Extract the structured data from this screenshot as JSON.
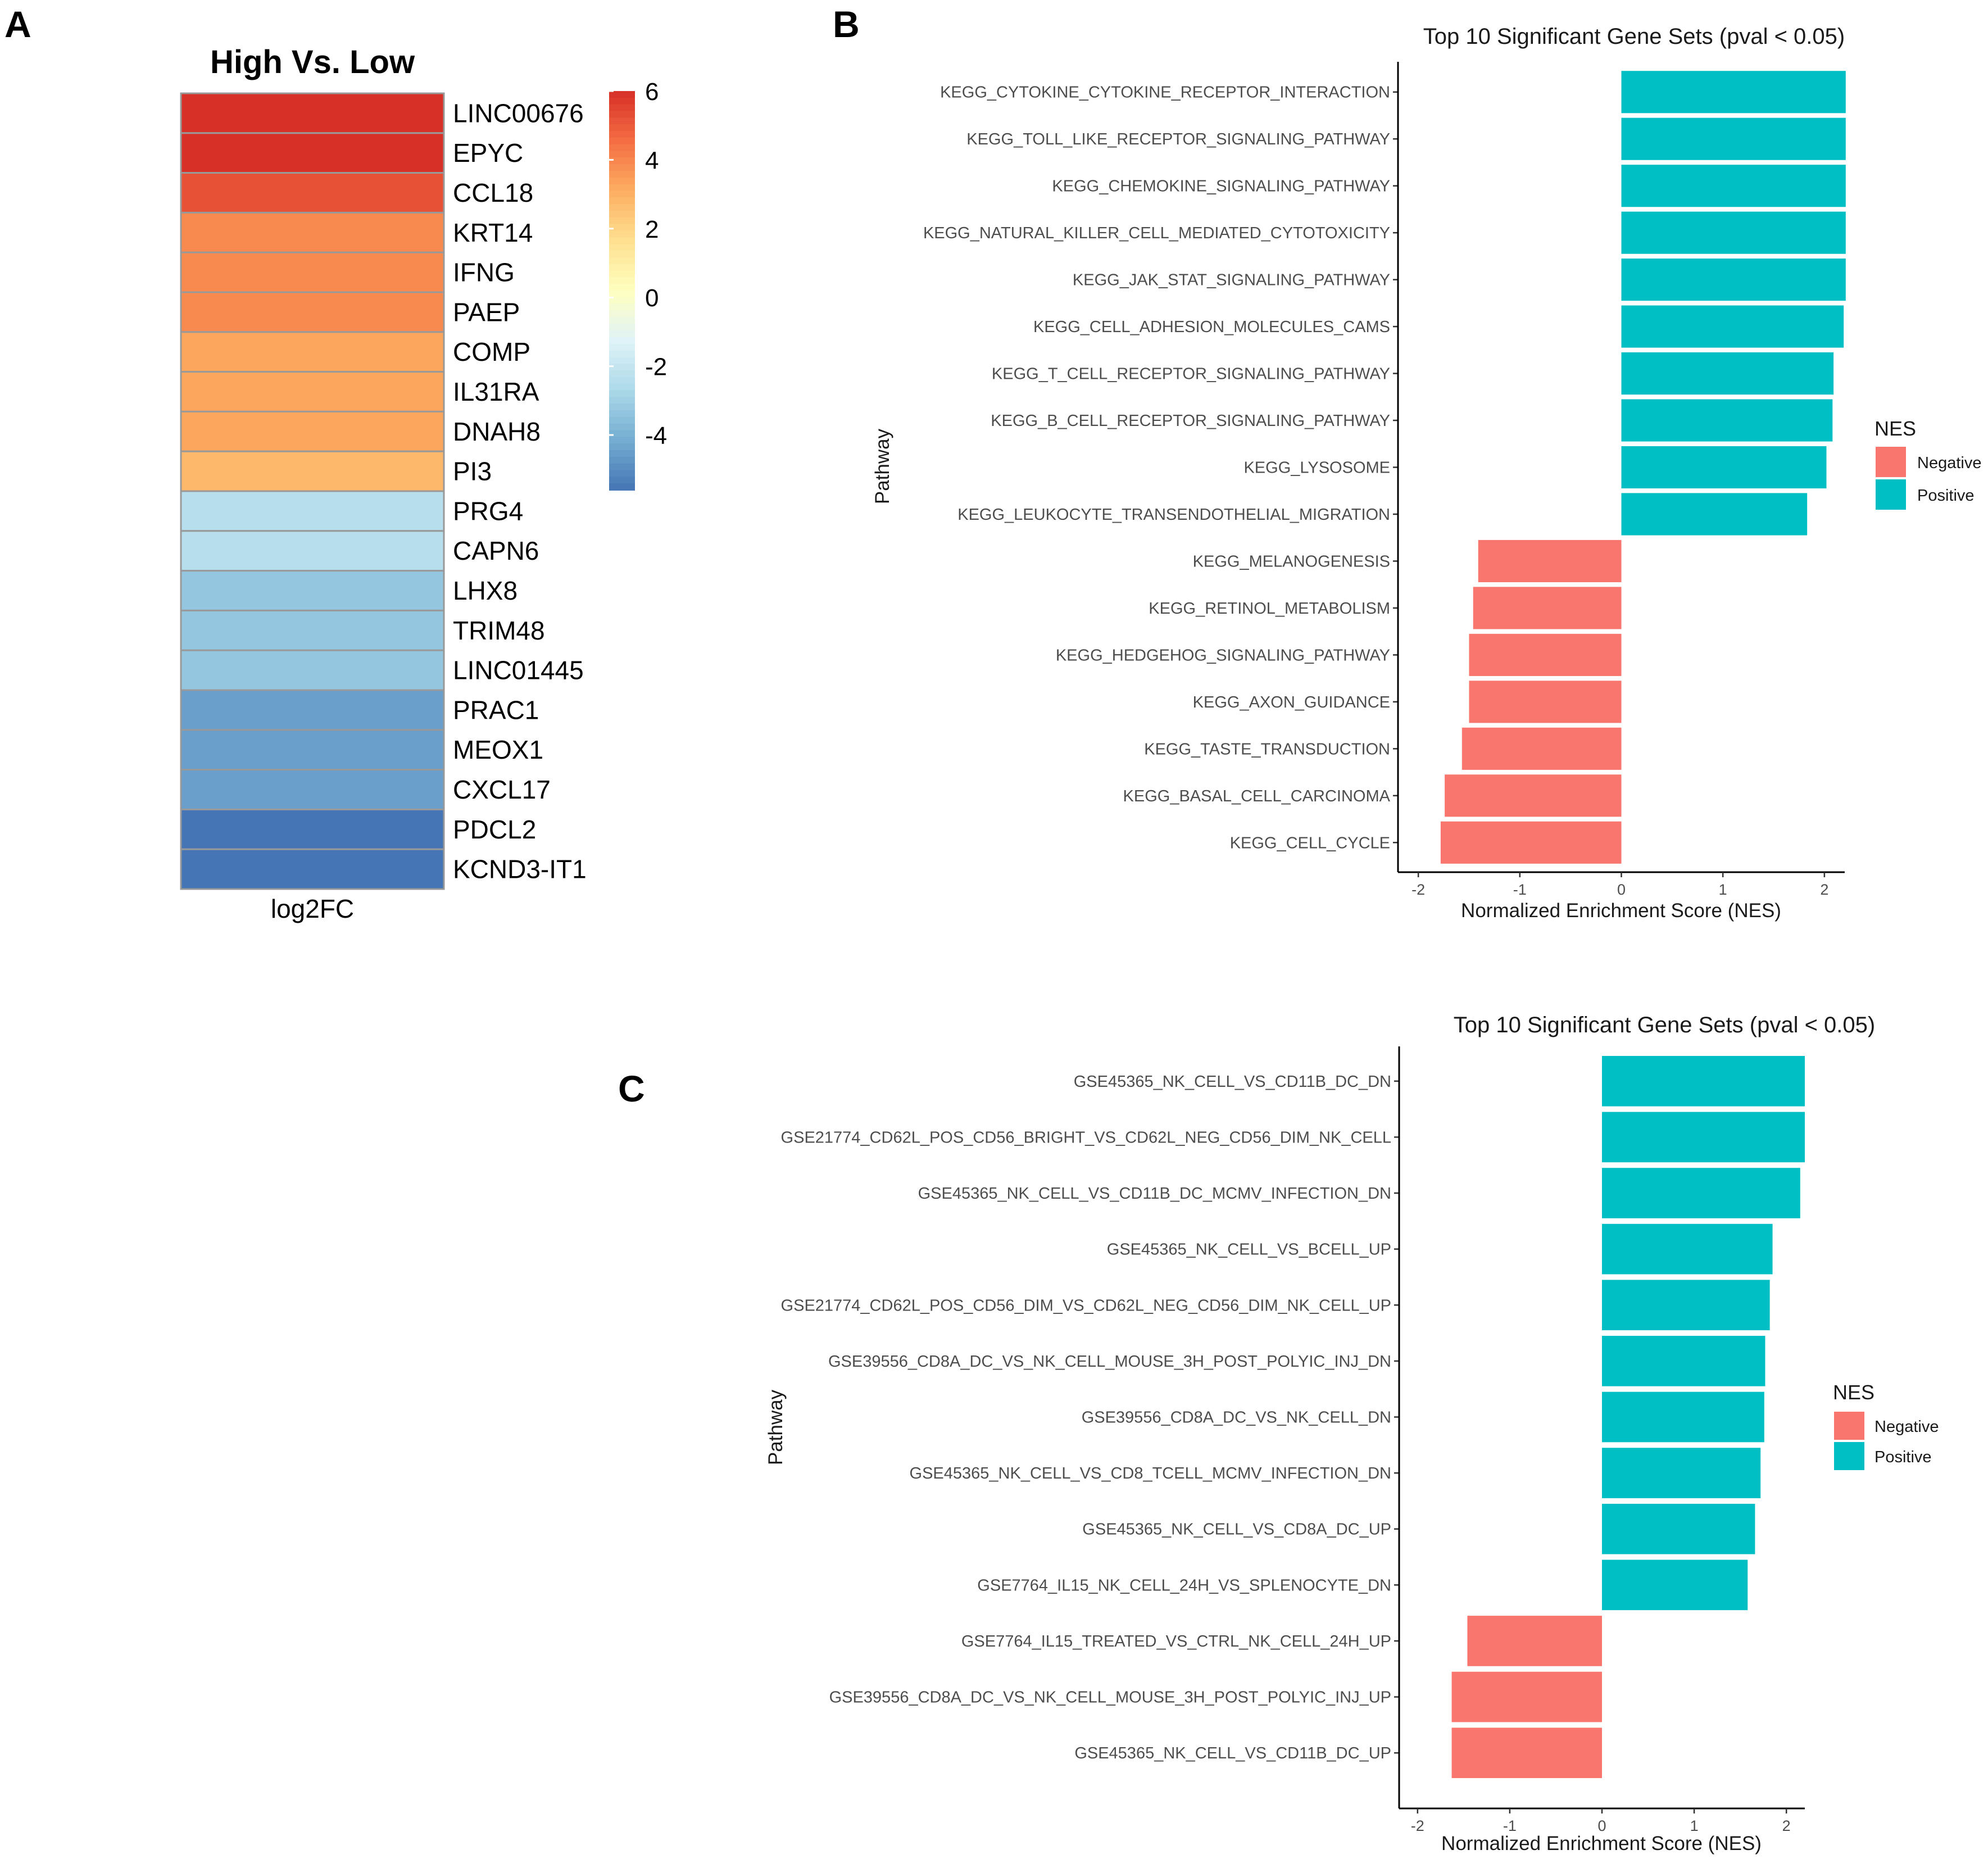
{
  "panels": {
    "a": "A",
    "b": "B",
    "c": "C"
  },
  "chart_data": [
    {
      "type": "heatmap",
      "title": "High Vs. Low",
      "xlabel": "log2FC",
      "rows": [
        "LINC00676",
        "EPYC",
        "CCL18",
        "KRT14",
        "IFNG",
        "PAEP",
        "COMP",
        "IL31RA",
        "DNAH8",
        "PI3",
        "PRG4",
        "CAPN6",
        "LHX8",
        "TRIM48",
        "LINC01445",
        "PRAC1",
        "MEOX1",
        "CXCL17",
        "PDCL2",
        "KCND3-IT1"
      ],
      "values": [
        6.0,
        6.0,
        5.2,
        3.9,
        3.9,
        3.9,
        3.3,
        3.3,
        3.3,
        2.8,
        -2.4,
        -2.4,
        -3.3,
        -3.3,
        -3.3,
        -4.5,
        -4.5,
        -4.5,
        -5.6,
        -5.6
      ],
      "colorbar": {
        "ticks": [
          6,
          4,
          2,
          0,
          -2,
          -4
        ],
        "range": [
          -5.6,
          6.0
        ]
      },
      "colors": {
        "high": "#d73027",
        "mid": "#ffffbf",
        "low": "#4575b4"
      }
    },
    {
      "type": "bar",
      "orientation": "horizontal",
      "title": "Top 10 Significant Gene Sets (pval < 0.05)",
      "xlabel": "Normalized Enrichment Score (NES)",
      "ylabel": "Pathway",
      "categories": [
        "KEGG_CYTOKINE_CYTOKINE_RECEPTOR_INTERACTION",
        "KEGG_TOLL_LIKE_RECEPTOR_SIGNALING_PATHWAY",
        "KEGG_CHEMOKINE_SIGNALING_PATHWAY",
        "KEGG_NATURAL_KILLER_CELL_MEDIATED_CYTOTOXICITY",
        "KEGG_JAK_STAT_SIGNALING_PATHWAY",
        "KEGG_CELL_ADHESION_MOLECULES_CAMS",
        "KEGG_T_CELL_RECEPTOR_SIGNALING_PATHWAY",
        "KEGG_B_CELL_RECEPTOR_SIGNALING_PATHWAY",
        "KEGG_LYSOSOME",
        "KEGG_LEUKOCYTE_TRANSENDOTHELIAL_MIGRATION",
        "KEGG_MELANOGENESIS",
        "KEGG_RETINOL_METABOLISM",
        "KEGG_HEDGEHOG_SIGNALING_PATHWAY",
        "KEGG_AXON_GUIDANCE",
        "KEGG_TASTE_TRANSDUCTION",
        "KEGG_BASAL_CELL_CARCINOMA",
        "KEGG_CELL_CYCLE"
      ],
      "values": [
        2.21,
        2.21,
        2.21,
        2.21,
        2.21,
        2.19,
        2.09,
        2.08,
        2.02,
        1.83,
        -1.41,
        -1.46,
        -1.5,
        -1.5,
        -1.57,
        -1.74,
        -1.78
      ],
      "xlim": [
        -2.2,
        2.2
      ],
      "xticks": [
        -2,
        -1,
        0,
        1,
        2
      ],
      "legend": {
        "title": "NES",
        "items": [
          "Negative",
          "Positive"
        ],
        "position": "right"
      },
      "colors": {
        "negative": "#f8766d",
        "positive": "#00bfc4"
      }
    },
    {
      "type": "bar",
      "orientation": "horizontal",
      "title": "Top 10 Significant Gene Sets (pval < 0.05)",
      "xlabel": "Normalized Enrichment Score (NES)",
      "ylabel": "Pathway",
      "categories": [
        "GSE45365_NK_CELL_VS_CD11B_DC_DN",
        "GSE21774_CD62L_POS_CD56_BRIGHT_VS_CD62L_NEG_CD56_DIM_NK_CELL",
        "GSE45365_NK_CELL_VS_CD11B_DC_MCMV_INFECTION_DN",
        "GSE45365_NK_CELL_VS_BCELL_UP",
        "GSE21774_CD62L_POS_CD56_DIM_VS_CD62L_NEG_CD56_DIM_NK_CELL_UP",
        "GSE39556_CD8A_DC_VS_NK_CELL_MOUSE_3H_POST_POLYIC_INJ_DN",
        "GSE39556_CD8A_DC_VS_NK_CELL_DN",
        "GSE45365_NK_CELL_VS_CD8_TCELL_MCMV_INFECTION_DN",
        "GSE45365_NK_CELL_VS_CD8A_DC_UP",
        "GSE7764_IL15_NK_CELL_24H_VS_SPLENOCYTE_DN",
        "GSE7764_IL15_TREATED_VS_CTRL_NK_CELL_24H_UP",
        "GSE39556_CD8A_DC_VS_NK_CELL_MOUSE_3H_POST_POLYIC_INJ_UP",
        "GSE45365_NK_CELL_VS_CD11B_DC_UP"
      ],
      "values": [
        2.2,
        2.2,
        2.15,
        1.85,
        1.82,
        1.77,
        1.76,
        1.72,
        1.66,
        1.58,
        -1.46,
        -1.63,
        -1.63
      ],
      "xlim": [
        -2.2,
        2.2
      ],
      "xticks": [
        -2,
        -1,
        0,
        1,
        2
      ],
      "legend": {
        "title": "NES",
        "items": [
          "Negative",
          "Positive"
        ],
        "position": "right"
      },
      "colors": {
        "negative": "#f8766d",
        "positive": "#00bfc4"
      }
    }
  ]
}
